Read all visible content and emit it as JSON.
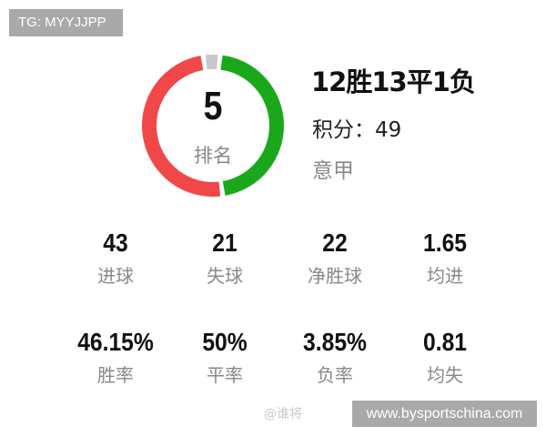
{
  "watermark_tg": "TG: MYYJJPP",
  "ring": {
    "wins": 12,
    "draws": 13,
    "losses": 1,
    "colors": {
      "win": "#1aa81a",
      "draw": "#f04848",
      "loss": "#c8c8c8"
    }
  },
  "rank": {
    "value": "5",
    "label": "排名"
  },
  "record": "12胜13平1负",
  "points": "积分：49",
  "league": "意甲",
  "stats": [
    {
      "value": "43",
      "label": "进球"
    },
    {
      "value": "21",
      "label": "失球"
    },
    {
      "value": "22",
      "label": "净胜球"
    },
    {
      "value": "1.65",
      "label": "均进"
    },
    {
      "value": "46.15%",
      "label": "胜率"
    },
    {
      "value": "50%",
      "label": "平率"
    },
    {
      "value": "3.85%",
      "label": "负率"
    },
    {
      "value": "0.81",
      "label": "均失"
    }
  ],
  "watermark_weibo": "@谁将",
  "site": "www.bysportschina.com"
}
